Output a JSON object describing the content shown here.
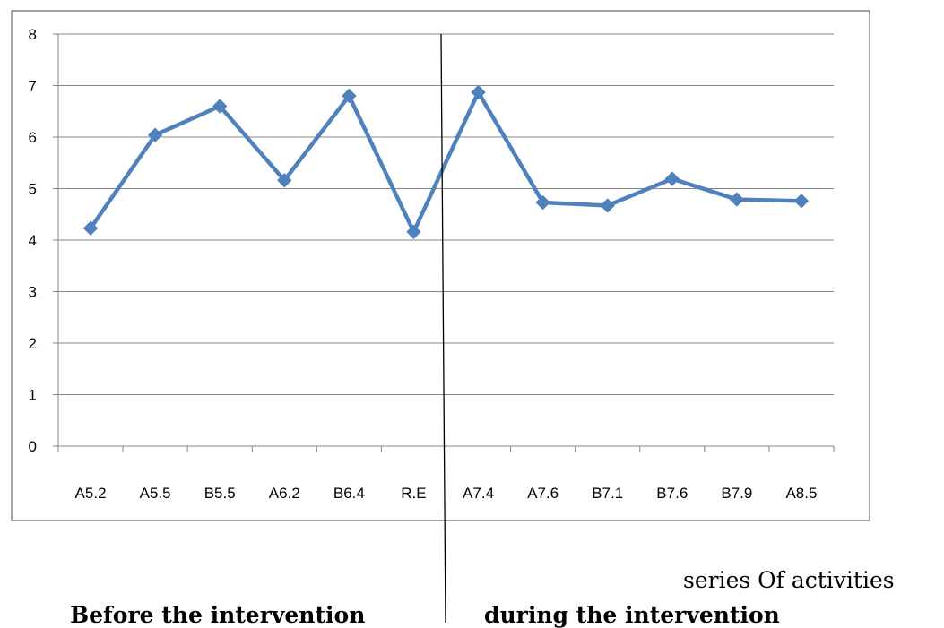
{
  "chart_data": {
    "type": "line",
    "categories": [
      "A5.2",
      "A5.5",
      "B5.5",
      "A6.2",
      "B6.4",
      "R.E",
      "A7.4",
      "A7.6",
      "B7.1",
      "B7.6",
      "B7.9",
      "A8.5"
    ],
    "series": [
      {
        "values": [
          4.23,
          6.04,
          6.6,
          5.16,
          6.8,
          4.16,
          6.87,
          4.73,
          4.67,
          5.19,
          4.79,
          4.76
        ]
      }
    ],
    "ylim": [
      0,
      8
    ],
    "yticks": [
      0,
      1,
      2,
      3,
      4,
      5,
      6,
      7,
      8
    ],
    "grid": true,
    "legend": "none",
    "xlabel": "series Of activities",
    "annotations": {
      "divider_between": [
        "R.E",
        "A7.4"
      ],
      "left_phase": "Before the intervention",
      "right_phase": "during the intervention"
    },
    "colors": {
      "series": "#4F81BD",
      "grid": "#868686",
      "axis": "#868686",
      "frame": "#868686"
    }
  }
}
